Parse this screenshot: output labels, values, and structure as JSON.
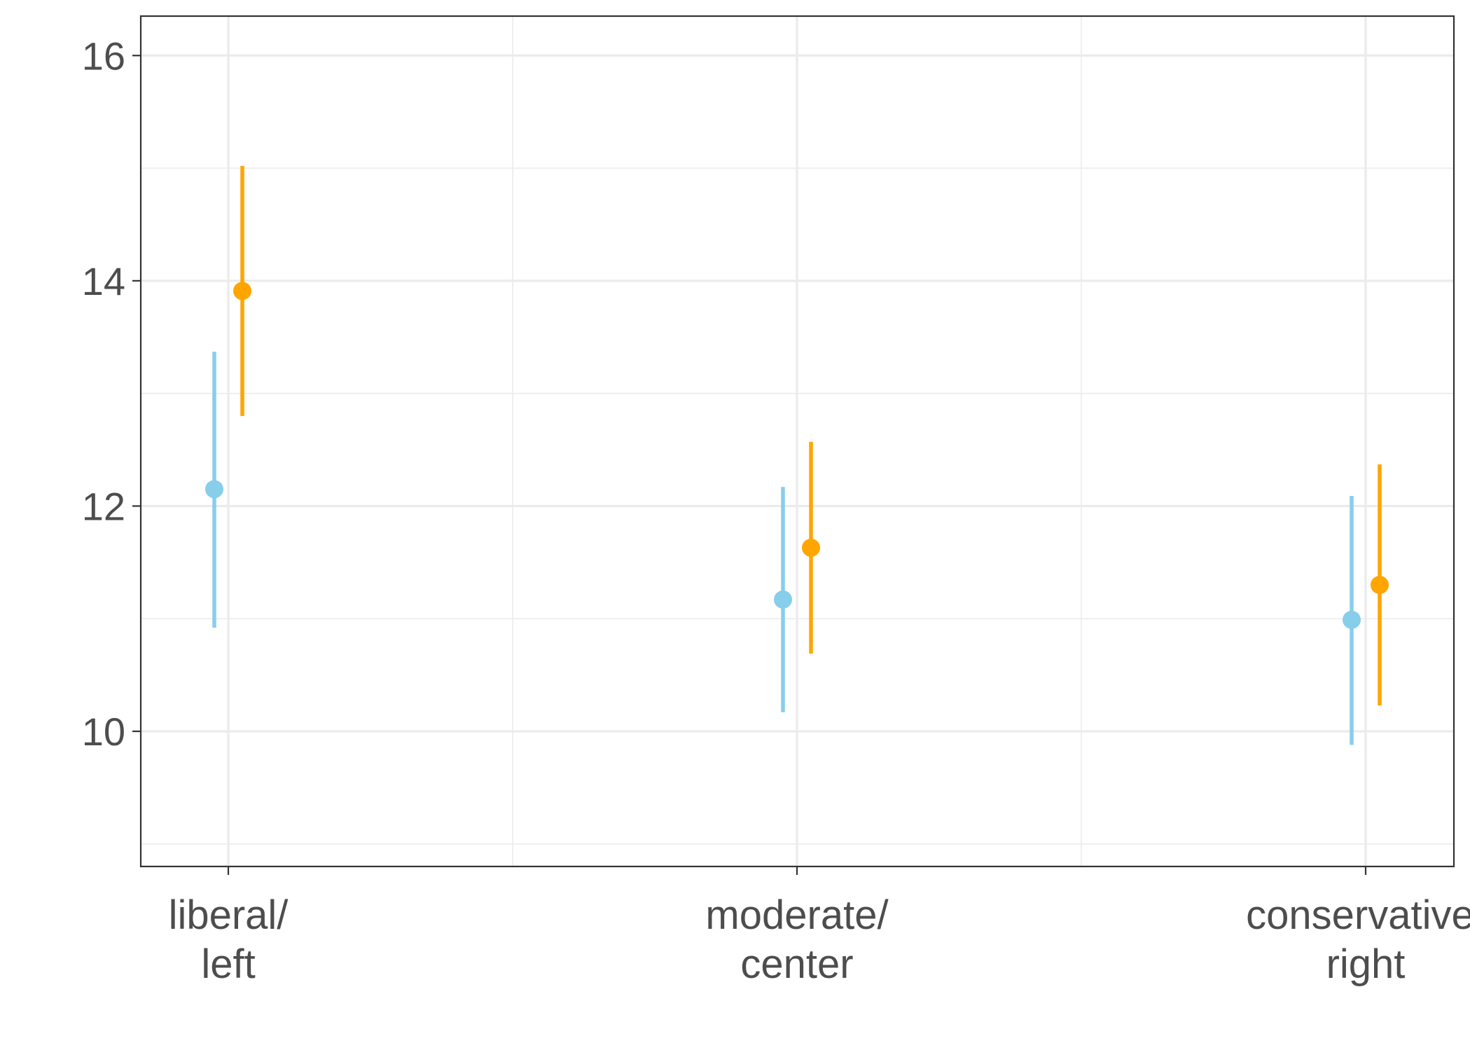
{
  "chart_data": {
    "type": "pointrange",
    "title": "",
    "xlabel": "",
    "ylabel": "",
    "categories": [
      {
        "lines": [
          "liberal/",
          "left"
        ]
      },
      {
        "lines": [
          "moderate/",
          "center"
        ]
      },
      {
        "lines": [
          "conservative/",
          "right"
        ]
      }
    ],
    "y_ticks": [
      "10",
      "12",
      "14",
      "16"
    ],
    "ylim": [
      8.8,
      16.35
    ],
    "grid": true,
    "legend": "none",
    "series": [
      {
        "color": "#87CEEB",
        "points": [
          {
            "category": 0,
            "value": 12.15,
            "lower": 10.92,
            "upper": 13.37
          },
          {
            "category": 1,
            "value": 11.17,
            "lower": 10.17,
            "upper": 12.17
          },
          {
            "category": 2,
            "value": 10.99,
            "lower": 9.88,
            "upper": 12.09
          }
        ]
      },
      {
        "color": "#FFA500",
        "points": [
          {
            "category": 0,
            "value": 13.91,
            "lower": 12.8,
            "upper": 15.02
          },
          {
            "category": 1,
            "value": 11.63,
            "lower": 10.69,
            "upper": 12.57
          },
          {
            "category": 2,
            "value": 11.3,
            "lower": 10.23,
            "upper": 12.37
          }
        ]
      }
    ]
  }
}
